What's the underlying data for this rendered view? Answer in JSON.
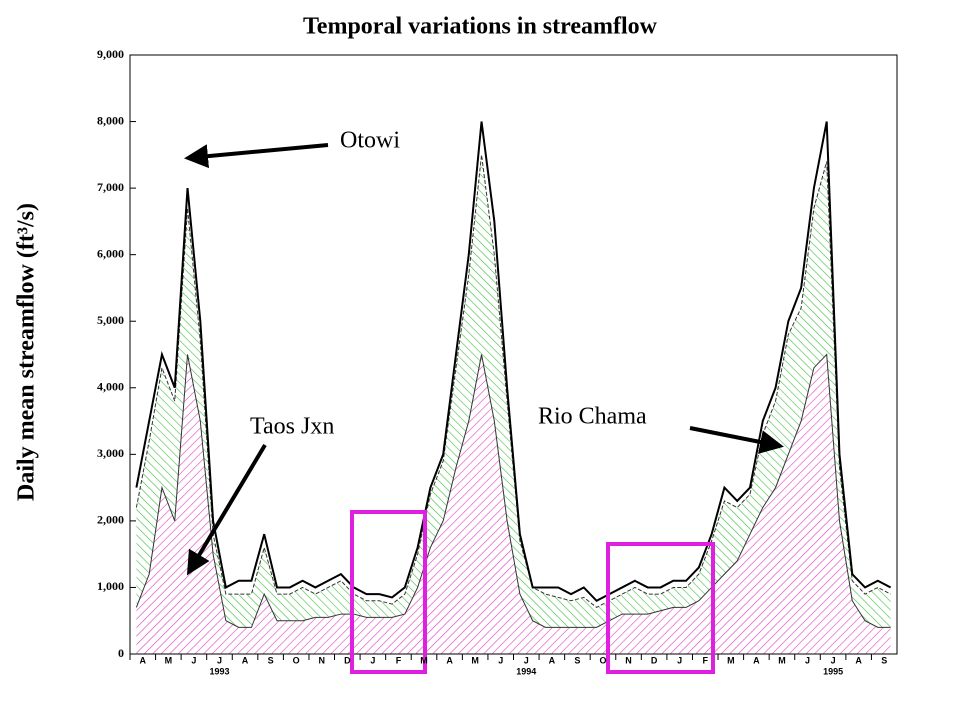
{
  "chart_data": {
    "type": "area",
    "title": "Temporal variations in streamflow",
    "y_label": "Daily mean streamflow (ft³/s)",
    "categories": [
      "A",
      null,
      "M",
      null,
      "J",
      null,
      "J",
      null,
      "A",
      null,
      "S",
      null,
      "O",
      null,
      "N",
      null,
      "D",
      null,
      "J",
      null,
      "F",
      null,
      "M",
      null,
      "A",
      null,
      "M",
      null,
      "J",
      null,
      "J",
      null,
      "A",
      null,
      "S",
      null,
      "O",
      null,
      "N",
      null,
      "D",
      null,
      "J",
      null,
      "F",
      null,
      "M",
      null,
      "A",
      null,
      "M",
      null,
      "J",
      null,
      "J",
      null,
      "A",
      null,
      "S",
      null
    ],
    "years": [
      "1993",
      "1994",
      "1995"
    ],
    "series": [
      {
        "name": "Taos Jxn",
        "color": "#e040c0",
        "values": [
          700,
          1200,
          2500,
          2000,
          4500,
          3500,
          1500,
          500,
          400,
          400,
          900,
          500,
          500,
          500,
          550,
          550,
          600,
          600,
          550,
          550,
          550,
          600,
          1000,
          1600,
          2000,
          2800,
          3500,
          4500,
          3500,
          2000,
          900,
          500,
          400,
          400,
          400,
          400,
          400,
          500,
          600,
          600,
          600,
          650,
          700,
          700,
          800,
          1000,
          1200,
          1400,
          1800,
          2200,
          2500,
          3000,
          3500,
          4300,
          4500,
          2000,
          800,
          500,
          400,
          400
        ]
      },
      {
        "name": "Rio Chama",
        "color": "#40c040",
        "values": [
          1500,
          2000,
          1800,
          1800,
          2200,
          1200,
          300,
          400,
          500,
          500,
          700,
          400,
          400,
          500,
          350,
          450,
          500,
          300,
          250,
          250,
          200,
          300,
          500,
          800,
          900,
          1500,
          2200,
          3000,
          2500,
          1800,
          800,
          500,
          500,
          450,
          400,
          450,
          300,
          300,
          300,
          400,
          300,
          250,
          300,
          300,
          400,
          700,
          1100,
          800,
          600,
          1100,
          1300,
          1800,
          1700,
          2400,
          2900,
          800,
          300,
          400,
          600,
          500
        ]
      },
      {
        "name": "Otowi",
        "color": "#000000",
        "values": [
          2500,
          3500,
          4500,
          4000,
          7000,
          5000,
          2000,
          1000,
          1100,
          1100,
          1800,
          1000,
          1000,
          1100,
          1000,
          1100,
          1200,
          1000,
          900,
          900,
          850,
          1000,
          1600,
          2500,
          3000,
          4500,
          6000,
          8000,
          6500,
          4000,
          1800,
          1000,
          1000,
          1000,
          900,
          1000,
          800,
          900,
          1000,
          1100,
          1000,
          1000,
          1100,
          1100,
          1300,
          1800,
          2500,
          2300,
          2500,
          3500,
          4000,
          5000,
          5500,
          7000,
          8000,
          3000,
          1200,
          1000,
          1100,
          1000
        ]
      }
    ],
    "ylim": [
      0,
      9000
    ],
    "yticks": [
      0,
      {
        "value": 1000,
        "label": "1,000"
      },
      {
        "value": 2000,
        "label": "2,000"
      },
      {
        "value": 3000,
        "label": "3,000"
      },
      {
        "value": 4000,
        "label": "4,000"
      },
      {
        "value": 5000,
        "label": "5,000"
      },
      {
        "value": 6000,
        "label": "6,000"
      },
      {
        "value": 7000,
        "label": "7,000"
      },
      {
        "value": 8000,
        "label": "8,000"
      },
      {
        "value": 9000,
        "label": "9,000"
      }
    ]
  }
}
